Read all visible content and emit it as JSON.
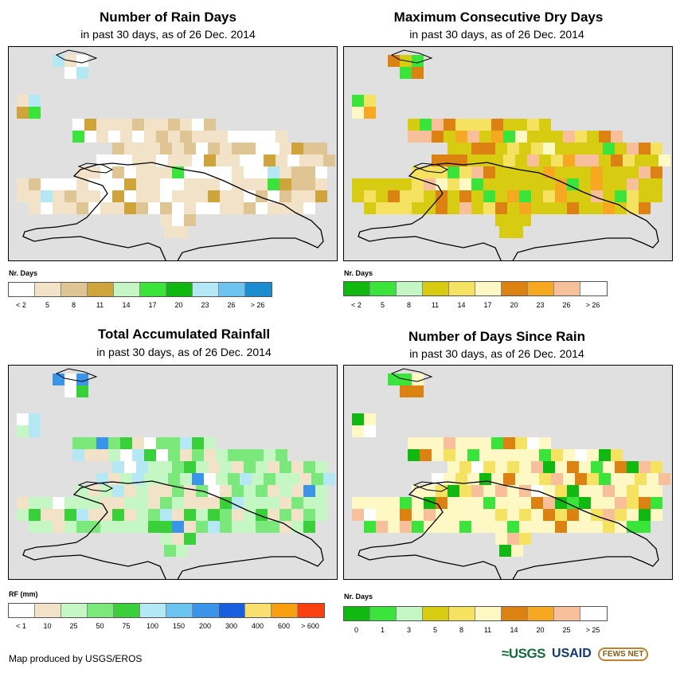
{
  "panels": [
    {
      "title": "Number of Rain Days",
      "subtitle": "in past 30 days, as of 26 Dec. 2014",
      "legend_title": "Nr. Days",
      "legend_colors": [
        "#ffffff",
        "#f1e2c8",
        "#e0c594",
        "#cfa43a",
        "#c4f7c4",
        "#3ae43a",
        "#12b812",
        "#b5e8f5",
        "#6ac3f1",
        "#1a8ccf"
      ],
      "legend_labels": [
        "< 2",
        "5",
        "8",
        "11",
        "14",
        "17",
        "20",
        "23",
        "26",
        "> 26"
      ],
      "label_mode": "under"
    },
    {
      "title": "Maximum Consecutive Dry Days",
      "subtitle": "in past 30 days, as of 26 Dec. 2014",
      "legend_title": "Nr. Days",
      "legend_colors": [
        "#12b812",
        "#3ae43a",
        "#c4f7c4",
        "#d8cc12",
        "#f5e260",
        "#fdf8c4",
        "#dc8212",
        "#f5a820",
        "#f8c09a",
        "#ffffff"
      ],
      "legend_labels": [
        "< 2",
        "5",
        "8",
        "11",
        "14",
        "17",
        "20",
        "23",
        "26",
        "> 26"
      ],
      "label_mode": "under"
    },
    {
      "title": "Total Accumulated Rainfall",
      "subtitle": "in past 30 days, as of 26 Dec. 2014",
      "legend_title": "RF (mm)",
      "legend_colors": [
        "#ffffff",
        "#f1e2c8",
        "#c4f7c4",
        "#7ae87a",
        "#3ad03a",
        "#b5e8f5",
        "#6ac3f1",
        "#3a95e8",
        "#1a5ee0",
        "#f8e070",
        "#f8a010",
        "#f84010"
      ],
      "legend_labels": [
        "< 1",
        "10",
        "25",
        "50",
        "75",
        "100",
        "150",
        "200",
        "300",
        "400",
        "600",
        "> 600"
      ],
      "label_mode": "under"
    },
    {
      "title": "Number of Days Since Rain",
      "subtitle": "in past 30 days, as of 26 Dec. 2014",
      "legend_title": "Nr. Days",
      "legend_colors": [
        "#12b812",
        "#3ae43a",
        "#c4f7c4",
        "#d8cc12",
        "#f5e260",
        "#fdf8c4",
        "#dc8212",
        "#f5a820",
        "#f8c09a",
        "#ffffff"
      ],
      "legend_labels": [
        "0",
        "1",
        "3",
        "5",
        "8",
        "11",
        "14",
        "20",
        "25",
        "> 25"
      ],
      "label_mode": "under"
    }
  ],
  "footer": {
    "credit": "Map produced by USGS/EROS",
    "logo_usgs": "≈USGS",
    "logo_usaid": "USAID",
    "logo_fews": "FEWS NET"
  }
}
